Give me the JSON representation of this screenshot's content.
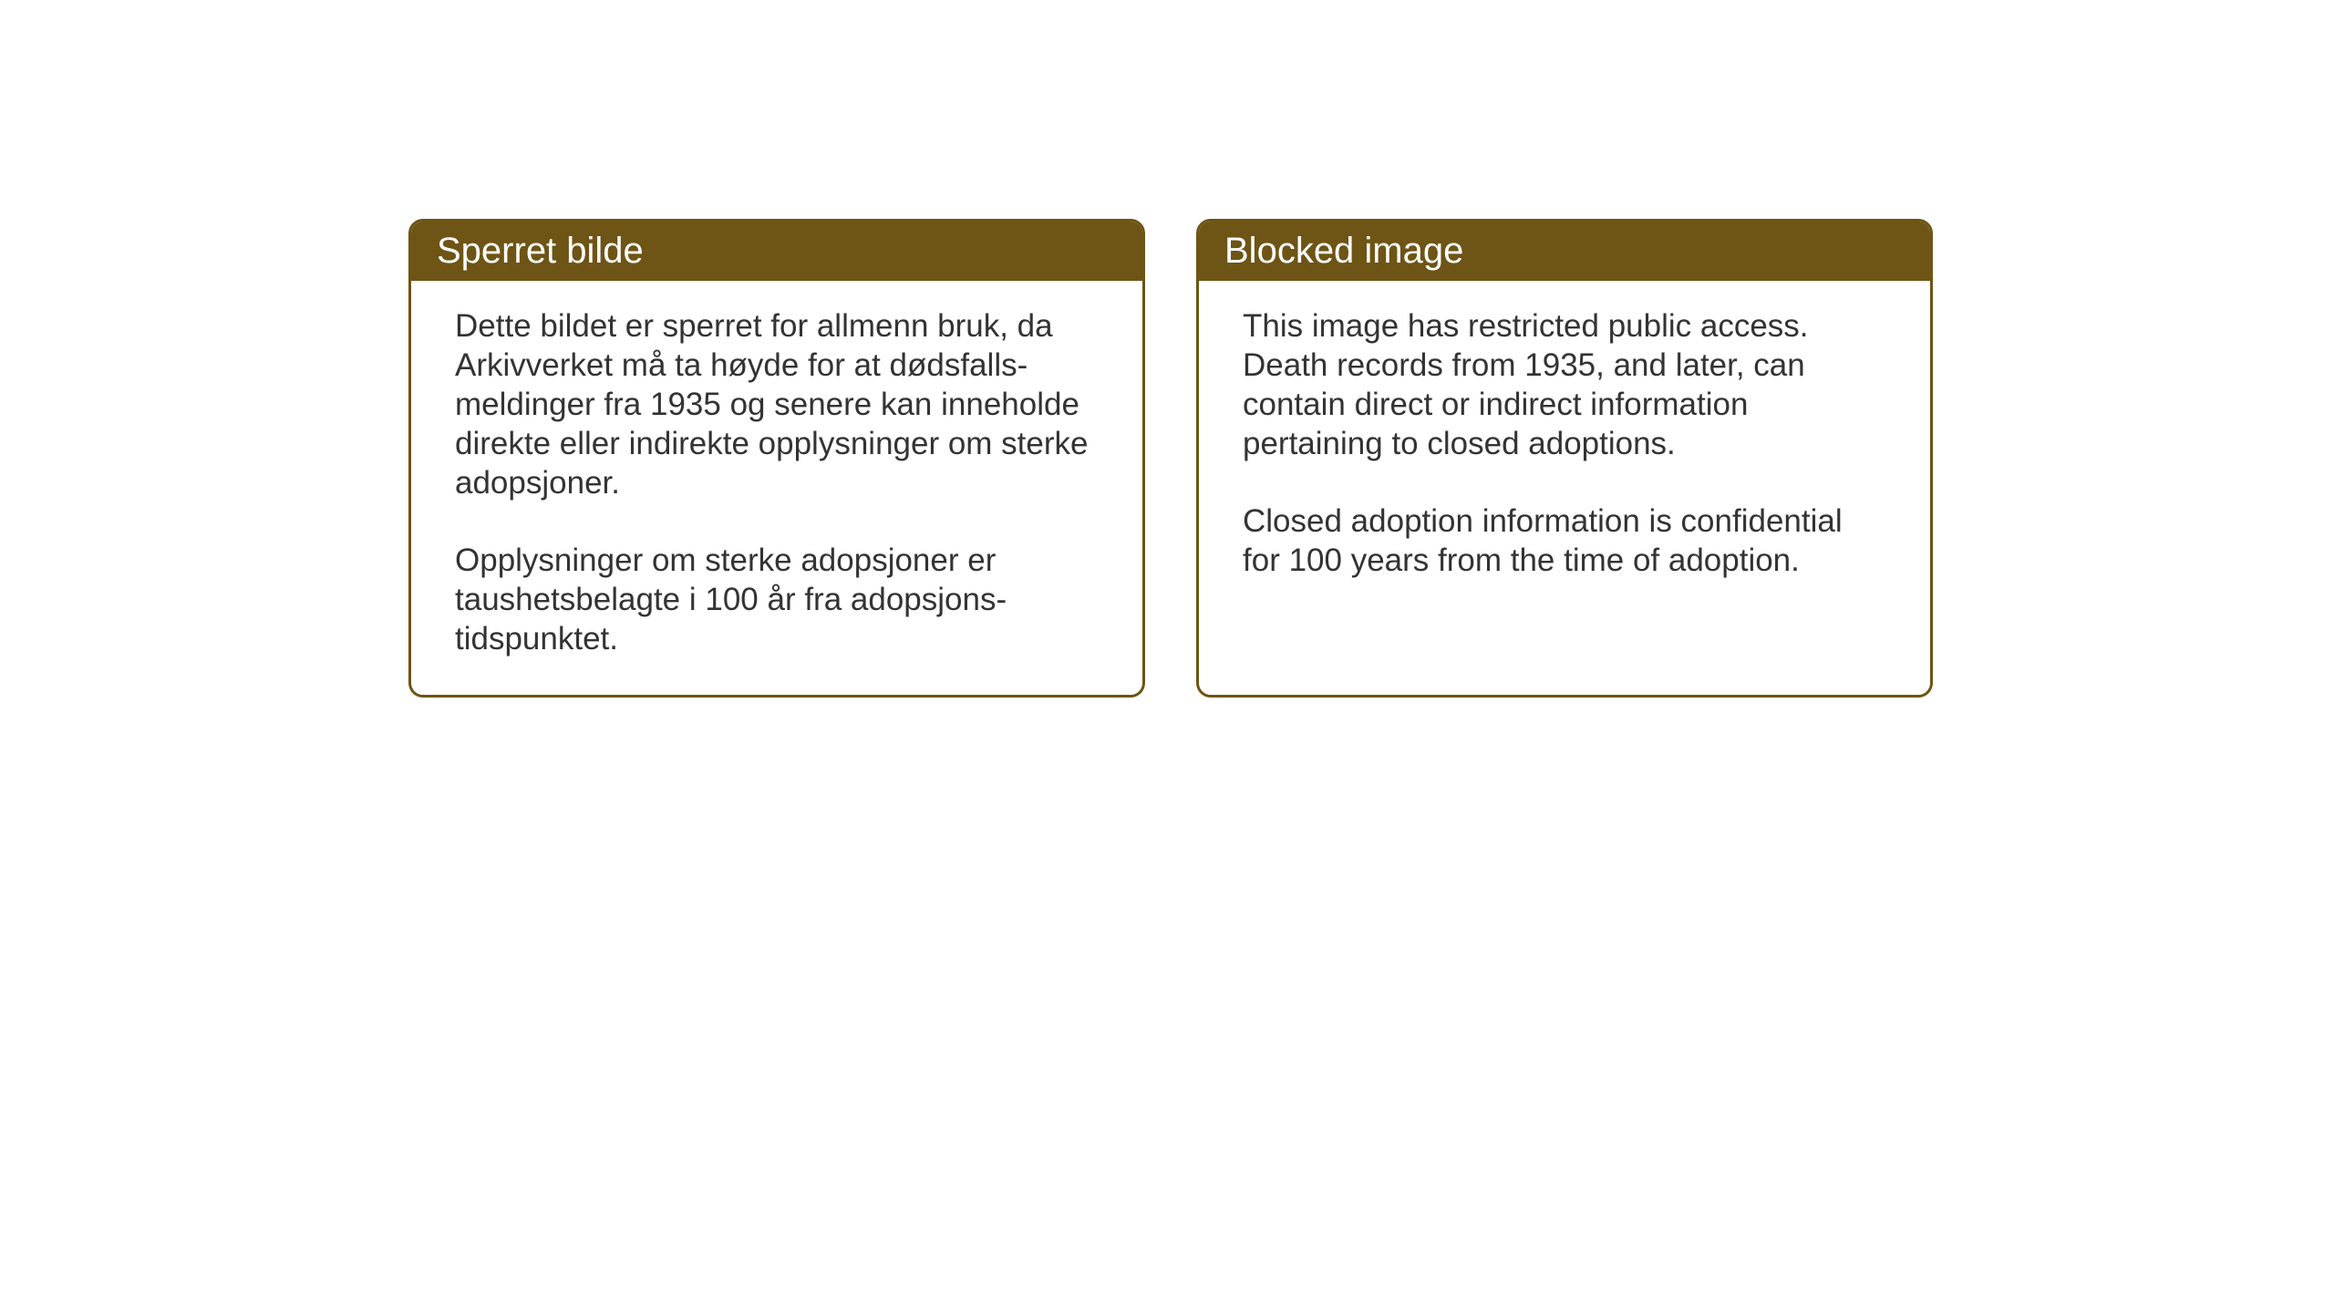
{
  "cards": {
    "norwegian": {
      "title": "Sperret bilde",
      "paragraph1": "Dette bildet er sperret for allmenn bruk, da Arkivverket må ta høyde for at dødsfalls-meldinger fra 1935 og senere kan inneholde direkte eller indirekte opplysninger om sterke adopsjoner.",
      "paragraph2": "Opplysninger om sterke adopsjoner er taushetsbelagte i 100 år fra adopsjons-tidspunktet."
    },
    "english": {
      "title": "Blocked image",
      "paragraph1": "This image has restricted public access. Death records from 1935, and later, can contain direct or indirect information pertaining to closed adoptions.",
      "paragraph2": "Closed adoption information is confidential for 100 years from the time of adoption."
    }
  },
  "styling": {
    "header_background": "#6e5415",
    "header_text_color": "#ffffff",
    "border_color": "#6e5415",
    "body_text_color": "#333333",
    "card_background": "#ffffff",
    "page_background": "#ffffff",
    "header_fontsize": 40,
    "body_fontsize": 35,
    "border_radius": 16,
    "border_width": 3
  }
}
